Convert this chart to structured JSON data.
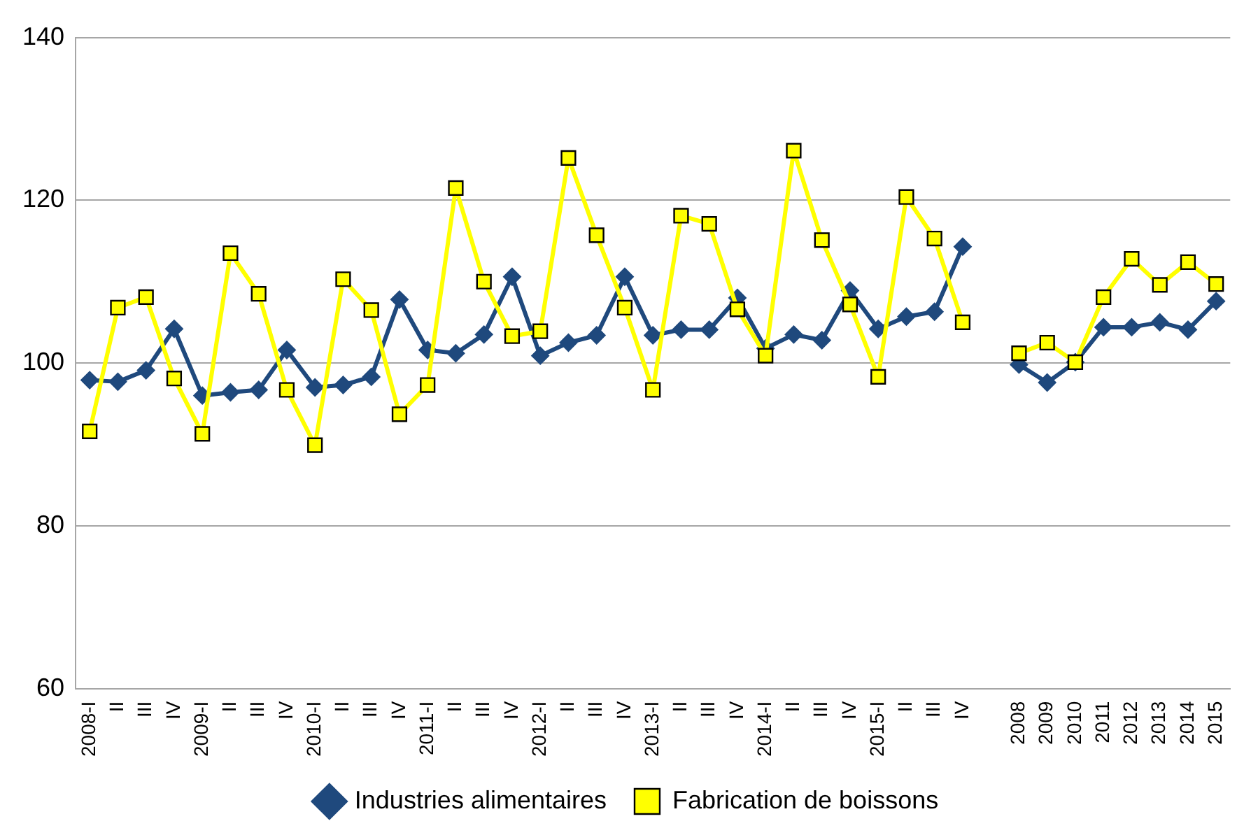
{
  "chart_data": {
    "type": "line",
    "categories": [
      "2008-I",
      "II",
      "III",
      "IV",
      "2009-I",
      "II",
      "III",
      "IV",
      "2010-I",
      "II",
      "III",
      "IV",
      "2011-I",
      "II",
      "III",
      "IV",
      "2012-I",
      "II",
      "III",
      "IV",
      "2013-I",
      "II",
      "III",
      "IV",
      "2014-I",
      "II",
      "III",
      "IV",
      "2015-I",
      "II",
      "III",
      "IV",
      null,
      "2008",
      "2009",
      "2010",
      "2011",
      "2012",
      "2013",
      "2014",
      "2015"
    ],
    "series": [
      {
        "name": "Industries alimentaires",
        "color": "#1f497d",
        "marker": "diamond",
        "values": [
          97.9,
          97.7,
          99.1,
          104.2,
          96.0,
          96.4,
          96.7,
          101.6,
          97.0,
          97.3,
          98.3,
          107.8,
          101.6,
          101.2,
          103.5,
          110.6,
          100.9,
          102.5,
          103.4,
          110.6,
          103.4,
          104.1,
          104.1,
          108.0,
          101.8,
          103.5,
          102.8,
          108.9,
          104.2,
          105.7,
          106.3,
          114.3,
          null,
          99.8,
          97.6,
          100.1,
          104.4,
          104.4,
          105.0,
          104.1,
          107.6
        ]
      },
      {
        "name": "Fabrication de boissons",
        "color": "#ffff00",
        "marker": "square",
        "values": [
          91.6,
          106.8,
          108.1,
          98.1,
          91.3,
          113.5,
          108.5,
          96.7,
          89.9,
          110.3,
          106.5,
          93.7,
          97.3,
          121.5,
          110.0,
          103.3,
          103.9,
          125.2,
          115.7,
          106.8,
          96.7,
          118.1,
          117.1,
          106.6,
          100.9,
          126.1,
          115.1,
          107.2,
          98.3,
          120.4,
          115.3,
          105.0,
          null,
          101.2,
          102.5,
          100.1,
          108.1,
          112.8,
          109.6,
          112.4,
          109.7
        ]
      }
    ],
    "ylim": [
      60,
      140
    ],
    "yticks": [
      60,
      80,
      100,
      120,
      140
    ],
    "grid": "y",
    "legend": "bottom",
    "line_style": "solid"
  }
}
